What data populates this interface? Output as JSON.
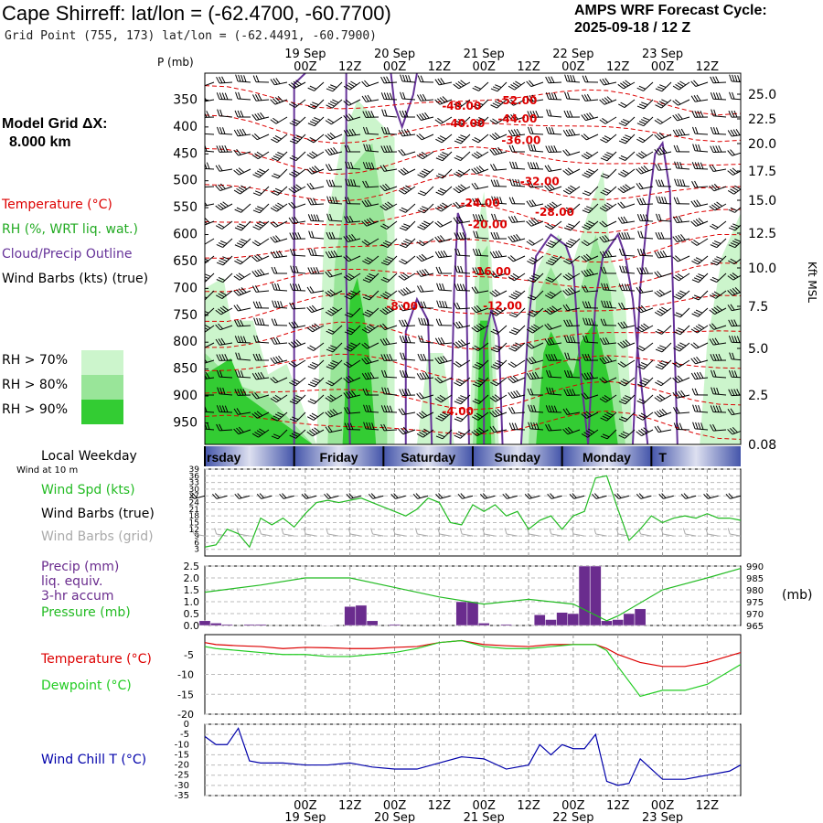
{
  "header": {
    "title": "Cape Shirreff:  lat/lon = (-62.4700, -60.7700)",
    "grid_point": "Grid Point (755, 173) lat/lon = (-62.4491, -60.7900)",
    "cycle_line1": "AMPS WRF Forecast Cycle:",
    "cycle_line2": "2025-09-18 / 12  Z"
  },
  "left_panel": {
    "model_grid_label": "Model Grid ΔX:",
    "model_grid_value": "8.000 km",
    "temperature_label": "Temperature (°C)",
    "rh_label": "RH (%, WRT liq. wat.)",
    "cloud_label": "Cloud/Precip Outline",
    "wind_label": "Wind Barbs (kts) (true)",
    "rh_legend": [
      {
        "label": "RH > 70%",
        "color": "#ccf5cc"
      },
      {
        "label": "RH > 80%",
        "color": "#99e599"
      },
      {
        "label": "RH > 90%",
        "color": "#33cc33"
      }
    ],
    "local_weekday_label": "Local Weekday",
    "wind_at_label": "Wind at 10 m",
    "wind_spd_label": "Wind Spd (kts)",
    "wind_barbs_true_label": "Wind Barbs (true)",
    "wind_barbs_grid_label": "Wind Barbs (grid)",
    "precip_label_1": "Precip (mm)",
    "precip_label_2": "liq. equiv.",
    "precip_label_3": "3-hr accum",
    "pressure_label": "Pressure (mb)",
    "pressure_unit": "(mb)",
    "temp_label": "Temperature (°C)",
    "dewpoint_label": "Dewpoint (°C)",
    "windchill_label": "Wind Chill T (°C)"
  },
  "colors": {
    "temperature": "#dd0000",
    "rh": "#22aa22",
    "cloud": "#663399",
    "dewpoint": "#22cc22",
    "windchill": "#0000aa",
    "precip": "#6a2c8e",
    "pressure": "#22bb22",
    "gray": "#aaaaaa"
  },
  "chart_data": [
    {
      "type": "contour",
      "name": "Vertical time-section",
      "p_axis_label": "P (mb)",
      "p_ticks": [
        350,
        400,
        450,
        500,
        550,
        600,
        650,
        700,
        750,
        800,
        850,
        900,
        950
      ],
      "kft_axis_label": "Kft MSL",
      "kft_ticks": [
        "25.0",
        "22.5",
        "20.0",
        "17.5",
        "15.0",
        "12.5",
        "10.0",
        "7.5",
        "5.0",
        "2.5",
        "0.08"
      ],
      "time_ticks": [
        "00Z",
        "12Z",
        "00Z",
        "12Z",
        "00Z",
        "12Z",
        "00Z",
        "12Z",
        "00Z",
        "12Z"
      ],
      "date_labels": [
        "19 Sep",
        "20 Sep",
        "21 Sep",
        "22 Sep",
        "23 Sep"
      ],
      "temperature_labels": [
        {
          "text": "-52.00",
          "t": 57,
          "p": 358
        },
        {
          "text": "-48.00",
          "t": 42,
          "p": 368
        },
        {
          "text": "-44.00",
          "t": 57,
          "p": 392
        },
        {
          "text": "-40.00",
          "t": 43,
          "p": 400
        },
        {
          "text": "-36.00",
          "t": 58,
          "p": 432
        },
        {
          "text": "-32.00",
          "t": 63,
          "p": 508
        },
        {
          "text": "-24.00",
          "t": 47,
          "p": 548
        },
        {
          "text": "-28.00",
          "t": 67,
          "p": 565
        },
        {
          "text": "-20.00",
          "t": 49,
          "p": 588
        },
        {
          "text": "-16.00",
          "t": 50,
          "p": 676
        },
        {
          "text": "-12.00",
          "t": 53,
          "p": 739
        },
        {
          "text": "-8.00",
          "t": 26,
          "p": 740
        },
        {
          "text": "-4.00",
          "t": 41,
          "p": 936
        }
      ]
    },
    {
      "type": "line",
      "name": "Wind speed 10 m",
      "y_ticks": [
        3,
        6,
        9,
        12,
        15,
        18,
        21,
        24,
        27,
        30,
        33,
        36,
        39
      ],
      "ylim": [
        0,
        39
      ],
      "x_hours": [
        -27,
        -24,
        -21,
        -18,
        -15,
        -12,
        -9,
        -6,
        -3,
        0,
        3,
        6,
        9,
        12,
        15,
        18,
        21,
        24,
        27,
        30,
        33,
        36,
        39,
        42,
        45,
        48,
        51,
        54,
        57,
        60,
        63,
        66,
        69,
        72,
        75,
        78,
        81,
        84,
        87,
        90,
        93,
        96,
        99,
        102,
        105,
        108,
        111,
        114,
        117
      ],
      "values": [
        4,
        5,
        12,
        10,
        4,
        17,
        14,
        17,
        13,
        19,
        24,
        25,
        24,
        25,
        26,
        24,
        22,
        20,
        18,
        21,
        26,
        24,
        15,
        14,
        23,
        20,
        23,
        18,
        20,
        12,
        16,
        18,
        12,
        18,
        20,
        35,
        36,
        21,
        7,
        12,
        18,
        15,
        17,
        18,
        17,
        19,
        17,
        17,
        16
      ]
    },
    {
      "type": "bar",
      "name": "3-hr precip & pressure",
      "precip_y_ticks": [
        "0.0",
        "0.5",
        "1.0",
        "1.5",
        "2.0",
        "2.5"
      ],
      "precip_ylim": [
        0,
        2.5
      ],
      "pressure_y_ticks": [
        965,
        970,
        975,
        980,
        985,
        990
      ],
      "pressure_ylim": [
        965,
        990
      ],
      "precip": [
        {
          "h": -27,
          "v": 0.2
        },
        {
          "h": -24,
          "v": 0.1
        },
        {
          "h": -21,
          "v": 0.05
        },
        {
          "h": -15,
          "v": 0.05
        },
        {
          "h": -12,
          "v": 0.05
        },
        {
          "h": 6,
          "v": 0.02
        },
        {
          "h": 12,
          "v": 0.8
        },
        {
          "h": 15,
          "v": 0.85
        },
        {
          "h": 18,
          "v": 0.2
        },
        {
          "h": 24,
          "v": 0.05
        },
        {
          "h": 42,
          "v": 1.0
        },
        {
          "h": 45,
          "v": 1.0
        },
        {
          "h": 48,
          "v": 0.1
        },
        {
          "h": 54,
          "v": 0.05
        },
        {
          "h": 63,
          "v": 0.45
        },
        {
          "h": 66,
          "v": 0.25
        },
        {
          "h": 69,
          "v": 0.55
        },
        {
          "h": 72,
          "v": 0.5
        },
        {
          "h": 75,
          "v": 2.5
        },
        {
          "h": 78,
          "v": 2.5
        },
        {
          "h": 81,
          "v": 0.2
        },
        {
          "h": 84,
          "v": 0.25
        },
        {
          "h": 87,
          "v": 0.5
        },
        {
          "h": 90,
          "v": 0.7
        }
      ],
      "pressure_hours": [
        -27,
        -12,
        0,
        12,
        24,
        36,
        48,
        60,
        72,
        81,
        84,
        96,
        108,
        117
      ],
      "pressure_values": [
        979,
        982,
        985,
        985,
        981,
        977,
        974,
        976,
        974,
        967,
        969,
        980,
        985,
        989
      ]
    },
    {
      "type": "line",
      "name": "Temperature and dewpoint",
      "y_ticks": [
        -20,
        -15,
        -10,
        -5
      ],
      "ylim": [
        -20,
        0
      ],
      "x_hours": [
        -27,
        -24,
        -18,
        -12,
        -6,
        0,
        6,
        12,
        18,
        24,
        30,
        36,
        42,
        48,
        54,
        60,
        66,
        72,
        78,
        81,
        84,
        90,
        96,
        102,
        108,
        117
      ],
      "temperature": [
        -2,
        -2.5,
        -2.8,
        -3,
        -3.5,
        -3.2,
        -3.3,
        -3.5,
        -3.5,
        -3.2,
        -3,
        -2,
        -1.5,
        -2.5,
        -2.8,
        -3,
        -2.5,
        -2.5,
        -2.5,
        -3.5,
        -5,
        -7,
        -8,
        -8,
        -7,
        -4.5
      ],
      "dewpoint": [
        -3,
        -3.5,
        -4,
        -4.5,
        -5,
        -5,
        -5.5,
        -5.5,
        -5,
        -4.5,
        -3.5,
        -2,
        -1.5,
        -3,
        -3.5,
        -3.5,
        -3,
        -2.5,
        -2.5,
        -4,
        -8,
        -15.5,
        -14,
        -14,
        -12.5,
        -7.5
      ]
    },
    {
      "type": "line",
      "name": "Wind chill",
      "y_ticks": [
        -35,
        -30,
        -25,
        -20,
        -15,
        -10,
        -5,
        0
      ],
      "ylim": [
        -35,
        0
      ],
      "x_hours": [
        -27,
        -24,
        -21,
        -18,
        -15,
        -12,
        -9,
        -6,
        0,
        6,
        12,
        18,
        24,
        30,
        36,
        42,
        48,
        54,
        60,
        63,
        66,
        69,
        72,
        75,
        78,
        81,
        84,
        87,
        90,
        93,
        96,
        102,
        108,
        114,
        117
      ],
      "values": [
        -6,
        -10,
        -10,
        -2,
        -18,
        -19,
        -19,
        -19,
        -20,
        -20,
        -19,
        -21,
        -22,
        -22,
        -19,
        -16,
        -17,
        -22,
        -20,
        -10,
        -15,
        -10,
        -12,
        -12,
        -5,
        -28,
        -30,
        -29,
        -17,
        -22,
        -27,
        -27,
        -25,
        -23,
        -20
      ]
    }
  ],
  "bottom_axis": {
    "time_ticks": [
      "00Z",
      "12Z",
      "00Z",
      "12Z",
      "00Z",
      "12Z",
      "00Z",
      "12Z",
      "00Z",
      "12Z"
    ],
    "date_labels": [
      "19 Sep",
      "20 Sep",
      "21 Sep",
      "22 Sep",
      "23 Sep"
    ]
  },
  "weekday_bar": [
    "rsday",
    "Friday",
    "Saturday",
    "Sunday",
    "Monday",
    "T"
  ]
}
